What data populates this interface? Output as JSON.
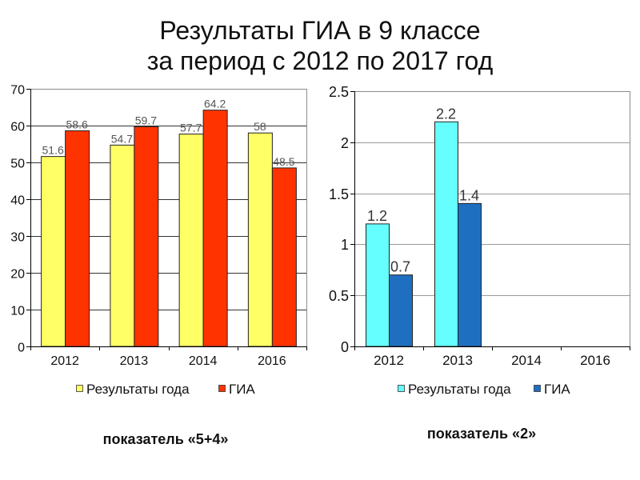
{
  "slide": {
    "title_line1": "Результаты ГИА в 9 классе",
    "title_line2": "за период с 2012 по 2017 год",
    "captions": [
      "показатель «5+4»",
      "показатель «2»"
    ]
  },
  "chart_data": [
    {
      "type": "bar",
      "categories": [
        "2012",
        "2013",
        "2014",
        "2016"
      ],
      "series": [
        {
          "name": "Результаты года",
          "color": "#FFFF66",
          "values": [
            51.6,
            54.7,
            57.7,
            58
          ]
        },
        {
          "name": "ГИА",
          "color": "#FF3300",
          "values": [
            58.6,
            59.7,
            64.2,
            48.5
          ]
        }
      ],
      "ylim": [
        0,
        70
      ],
      "yticks": [
        0,
        10,
        20,
        30,
        40,
        50,
        60,
        70
      ],
      "grid": true,
      "legend": "bottom"
    },
    {
      "type": "bar",
      "categories": [
        "2012",
        "2013",
        "2014",
        "2016"
      ],
      "series": [
        {
          "name": "Результаты года",
          "color": "#66FFFF",
          "values": [
            1.2,
            2.2,
            null,
            null
          ]
        },
        {
          "name": "ГИА",
          "color": "#1F6FC0",
          "values": [
            0.7,
            1.4,
            null,
            null
          ]
        }
      ],
      "ylim": [
        0,
        2.5
      ],
      "yticks": [
        0,
        0.5,
        1,
        1.5,
        2,
        2.5
      ],
      "grid": true,
      "legend": "bottom"
    }
  ]
}
